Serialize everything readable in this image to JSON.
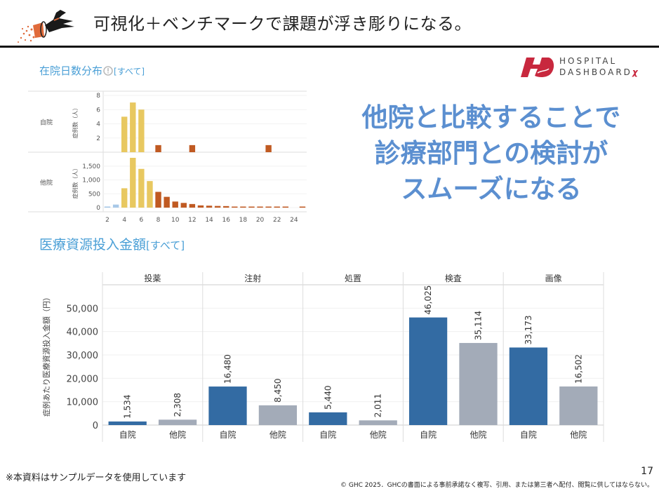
{
  "slide": {
    "title": "可視化＋ベンチマークで課題が浮き彫りになる。",
    "page_number": "17",
    "footnote": "※本資料はサンプルデータを使用しています",
    "copyright": "© GHC 2025．GHCの書面による事前承諾なく複写、引用、または第三者へ配付、閲覧に供してはならない。"
  },
  "brand": {
    "line1": "HOSPITAL",
    "line2": "DASHBOARD",
    "mark": "χ",
    "color": "#c8283e"
  },
  "message": {
    "lines": [
      "他院と比較することで",
      "診療部門との検討が",
      "スムーズになる"
    ],
    "color": "#5b8fd0"
  },
  "sections": {
    "los": {
      "title": "在院日数分布",
      "filter": "[すべて]"
    },
    "cost": {
      "title": "医療資源投入金額",
      "filter": "[すべて]"
    }
  },
  "chart_data": [
    {
      "type": "bar",
      "title": "在院日数分布",
      "xlabel": "",
      "ylabel": "症例数（人）",
      "x": [
        2,
        3,
        4,
        5,
        6,
        7,
        8,
        9,
        10,
        11,
        12,
        13,
        14,
        15,
        16,
        17,
        18,
        19,
        20,
        21,
        22,
        23,
        24,
        25
      ],
      "x_ticks": [
        2,
        4,
        6,
        8,
        10,
        12,
        14,
        16,
        18,
        20,
        22,
        24
      ],
      "color_groups": {
        "short": {
          "days": [
            2,
            3
          ],
          "color": "#a8c8e8"
        },
        "standard": {
          "days": [
            4,
            5,
            6,
            7
          ],
          "color": "#e8c860"
        },
        "long": {
          "days": [
            8,
            9,
            10,
            11,
            12,
            13,
            14,
            15,
            16,
            17,
            18,
            19,
            20,
            21,
            22,
            23,
            24,
            25
          ],
          "color": "#c05a22"
        }
      },
      "grid": true,
      "panels": [
        {
          "row_label": "自院",
          "ylim": [
            0,
            8
          ],
          "y_ticks": [
            2,
            4,
            6,
            8
          ],
          "values": [
            0,
            0,
            5,
            7,
            6,
            0,
            1,
            0,
            0,
            0,
            1,
            0,
            0,
            0,
            0,
            0,
            0,
            0,
            0,
            1,
            0,
            0,
            0,
            0
          ]
        },
        {
          "row_label": "他院",
          "ylim": [
            0,
            1800
          ],
          "y_ticks": [
            0,
            500,
            1000,
            1500
          ],
          "y_tick_labels": [
            "0",
            "500",
            "1,000",
            "1,500"
          ],
          "values": [
            40,
            110,
            700,
            1800,
            1400,
            960,
            570,
            390,
            220,
            170,
            130,
            80,
            70,
            60,
            55,
            20,
            20,
            20,
            15,
            15,
            20,
            20,
            0,
            10
          ]
        }
      ]
    },
    {
      "type": "bar",
      "title": "医療資源投入金額",
      "xlabel": "",
      "ylabel": "症例あたり医療資源投入金額（円）",
      "ylim": [
        0,
        60000
      ],
      "y_ticks": [
        0,
        10000,
        20000,
        30000,
        40000,
        50000
      ],
      "y_tick_labels": [
        "0",
        "10,000",
        "20,000",
        "30,000",
        "40,000",
        "50,000"
      ],
      "grid": true,
      "categories": [
        "投薬",
        "注射",
        "処置",
        "検査",
        "画像"
      ],
      "series": [
        {
          "name": "自院",
          "color": "#336ba3",
          "values": [
            1534,
            16480,
            5440,
            46025,
            33173
          ],
          "labels": [
            "1,534",
            "16,480",
            "5,440",
            "46,025",
            "33,173"
          ]
        },
        {
          "name": "他院",
          "color": "#a3abb8",
          "values": [
            2308,
            8450,
            2011,
            35114,
            16502
          ],
          "labels": [
            "2,308",
            "8,450",
            "2,011",
            "35,114",
            "16,502"
          ]
        }
      ]
    }
  ]
}
